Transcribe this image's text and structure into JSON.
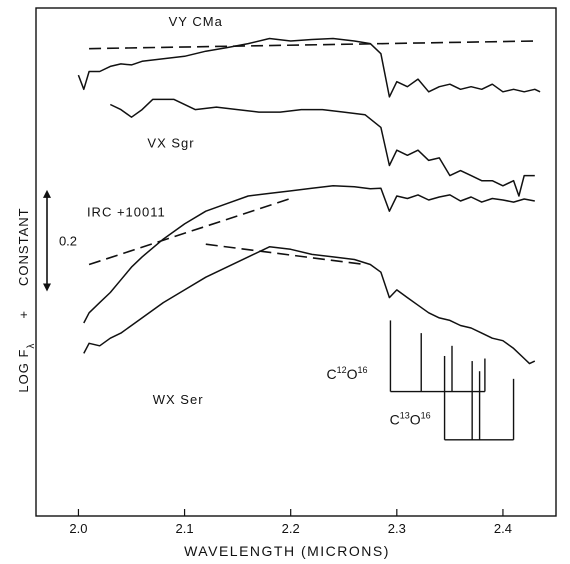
{
  "chart_data": {
    "type": "line",
    "title": "",
    "xlabel": "WAVELENGTH (MICRONS)",
    "ylabel": "LOG Fλ + CONSTANT",
    "xlim": [
      1.96,
      2.45
    ],
    "ylim": [
      0,
      1.0
    ],
    "x_ticks": [
      2.0,
      2.1,
      2.2,
      2.3,
      2.4
    ],
    "x_tick_labels": [
      "2.0",
      "2.1",
      "2.2",
      "2.3",
      "2.4"
    ],
    "grid": false,
    "legend": "none",
    "scale_bar": {
      "label": "0.2",
      "size": 0.2
    },
    "ylabel_parts": {
      "log": "LOG F",
      "sub": "λ",
      "plus": "+",
      "constant": "CONSTANT"
    },
    "series": [
      {
        "name": "VY CMa",
        "x": [
          2.0,
          2.005,
          2.01,
          2.02,
          2.03,
          2.04,
          2.05,
          2.06,
          2.08,
          2.1,
          2.12,
          2.14,
          2.16,
          2.18,
          2.2,
          2.22,
          2.24,
          2.26,
          2.275,
          2.285,
          2.293,
          2.3,
          2.31,
          2.32,
          2.33,
          2.34,
          2.35,
          2.36,
          2.37,
          2.38,
          2.39,
          2.4,
          2.41,
          2.42,
          2.43,
          2.435
        ],
        "y": [
          0.868,
          0.84,
          0.875,
          0.875,
          0.885,
          0.89,
          0.888,
          0.895,
          0.9,
          0.905,
          0.915,
          0.922,
          0.93,
          0.94,
          0.935,
          0.938,
          0.94,
          0.935,
          0.93,
          0.91,
          0.825,
          0.855,
          0.845,
          0.86,
          0.835,
          0.845,
          0.85,
          0.84,
          0.845,
          0.84,
          0.85,
          0.835,
          0.84,
          0.835,
          0.84,
          0.835
        ]
      },
      {
        "name": "VX Sgr",
        "x": [
          2.03,
          2.04,
          2.05,
          2.06,
          2.07,
          2.09,
          2.11,
          2.13,
          2.15,
          2.17,
          2.19,
          2.21,
          2.23,
          2.25,
          2.27,
          2.285,
          2.293,
          2.3,
          2.31,
          2.32,
          2.33,
          2.34,
          2.35,
          2.36,
          2.37,
          2.38,
          2.39,
          2.4,
          2.41,
          2.415,
          2.42,
          2.43
        ],
        "y": [
          0.81,
          0.8,
          0.785,
          0.8,
          0.82,
          0.82,
          0.8,
          0.805,
          0.8,
          0.795,
          0.795,
          0.8,
          0.8,
          0.795,
          0.79,
          0.765,
          0.69,
          0.72,
          0.71,
          0.72,
          0.7,
          0.705,
          0.67,
          0.68,
          0.67,
          0.66,
          0.66,
          0.65,
          0.66,
          0.63,
          0.67,
          0.67
        ]
      },
      {
        "name": "IRC +10011",
        "x": [
          2.005,
          2.01,
          2.02,
          2.03,
          2.04,
          2.05,
          2.06,
          2.08,
          2.1,
          2.12,
          2.14,
          2.16,
          2.18,
          2.2,
          2.22,
          2.24,
          2.26,
          2.275,
          2.285,
          2.293,
          2.3,
          2.31,
          2.32,
          2.33,
          2.34,
          2.35,
          2.36,
          2.37,
          2.38,
          2.39,
          2.4,
          2.41,
          2.42,
          2.43
        ],
        "y": [
          0.38,
          0.4,
          0.42,
          0.44,
          0.465,
          0.49,
          0.51,
          0.545,
          0.575,
          0.6,
          0.615,
          0.63,
          0.635,
          0.64,
          0.645,
          0.65,
          0.648,
          0.644,
          0.645,
          0.6,
          0.63,
          0.625,
          0.632,
          0.622,
          0.628,
          0.632,
          0.62,
          0.628,
          0.618,
          0.625,
          0.622,
          0.618,
          0.624,
          0.62
        ]
      },
      {
        "name": "WX Ser",
        "x": [
          2.005,
          2.01,
          2.02,
          2.03,
          2.04,
          2.05,
          2.06,
          2.08,
          2.1,
          2.12,
          2.14,
          2.16,
          2.18,
          2.2,
          2.22,
          2.24,
          2.26,
          2.275,
          2.285,
          2.293,
          2.3,
          2.31,
          2.32,
          2.33,
          2.34,
          2.35,
          2.36,
          2.37,
          2.38,
          2.39,
          2.4,
          2.41,
          2.42,
          2.425,
          2.43
        ],
        "y": [
          0.32,
          0.34,
          0.335,
          0.35,
          0.36,
          0.375,
          0.39,
          0.42,
          0.445,
          0.47,
          0.49,
          0.51,
          0.53,
          0.525,
          0.515,
          0.51,
          0.505,
          0.495,
          0.48,
          0.43,
          0.445,
          0.43,
          0.415,
          0.4,
          0.39,
          0.385,
          0.375,
          0.37,
          0.36,
          0.35,
          0.345,
          0.33,
          0.31,
          0.3,
          0.305
        ]
      }
    ],
    "continuum_lines": [
      {
        "name": "VY CMa continuum",
        "x": [
          2.01,
          2.43
        ],
        "y": [
          0.92,
          0.935
        ]
      },
      {
        "name": "IRC +10011 continuum",
        "x": [
          2.01,
          2.2
        ],
        "y": [
          0.495,
          0.625
        ]
      },
      {
        "name": "WX Ser continuum",
        "x": [
          2.12,
          2.27
        ],
        "y": [
          0.535,
          0.495
        ]
      }
    ],
    "band_heads": [
      {
        "label_main": "C",
        "label_sup1": "12",
        "label_mid": "O",
        "label_sup2": "16",
        "positions": [
          2.294,
          2.323,
          2.352,
          2.383
        ],
        "tick_top": [
          0.385,
          0.36,
          0.335,
          0.31
        ],
        "base": 0.245
      },
      {
        "label_main": "C",
        "label_sup1": "13",
        "label_mid": "O",
        "label_sup2": "16",
        "positions": [
          2.345,
          2.371,
          2.378,
          2.41
        ],
        "tick_top": [
          0.315,
          0.305,
          0.285,
          0.27
        ],
        "base": 0.15
      }
    ]
  }
}
